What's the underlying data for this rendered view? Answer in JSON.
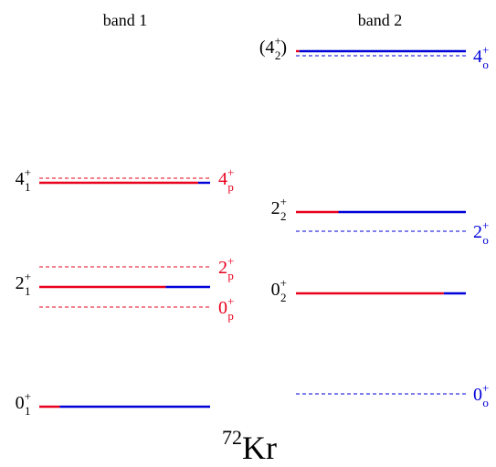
{
  "nucleus": {
    "mass": "72",
    "symbol": "Kr"
  },
  "colors": {
    "red": "#e8001c",
    "blue": "#0000d8",
    "black": "#000000"
  },
  "bands": [
    {
      "id": "band1",
      "title": "band 1"
    },
    {
      "id": "band2",
      "title": "band 2"
    }
  ],
  "levels": {
    "band1": [
      {
        "id": "g1-4",
        "label": {
          "base": "4",
          "sup": "+",
          "sub": "1"
        },
        "red_fraction": 0.93
      },
      {
        "id": "g1-2",
        "label": {
          "base": "2",
          "sup": "+",
          "sub": "1"
        },
        "red_fraction": 0.74
      },
      {
        "id": "g1-0",
        "label": {
          "base": "0",
          "sup": "+",
          "sub": "1"
        },
        "red_fraction": 0.12
      }
    ],
    "band2": [
      {
        "id": "g2-4",
        "label": {
          "pre": "(",
          "base": "4",
          "sup": "+",
          "sub": "2",
          "post": ")"
        },
        "red_fraction": 0.02
      },
      {
        "id": "g2-2",
        "label": {
          "base": "2",
          "sup": "+",
          "sub": "2"
        },
        "red_fraction": 0.25
      },
      {
        "id": "g2-0",
        "label": {
          "base": "0",
          "sup": "+",
          "sub": "2"
        },
        "red_fraction": 0.87
      }
    ]
  },
  "references": {
    "band1": [
      {
        "id": "p4",
        "label": {
          "base": "4",
          "sup": "+",
          "sub": "p"
        },
        "color": "red"
      },
      {
        "id": "p2",
        "label": {
          "base": "2",
          "sup": "+",
          "sub": "p"
        },
        "color": "red"
      },
      {
        "id": "p0",
        "label": {
          "base": "0",
          "sup": "+",
          "sub": "p"
        },
        "color": "red"
      }
    ],
    "band2": [
      {
        "id": "o4",
        "label": {
          "base": "4",
          "sup": "+",
          "sub": "o"
        },
        "color": "blue"
      },
      {
        "id": "o2",
        "label": {
          "base": "2",
          "sup": "+",
          "sub": "o"
        },
        "color": "blue"
      },
      {
        "id": "o0",
        "label": {
          "base": "0",
          "sup": "+",
          "sub": "o"
        },
        "color": "blue"
      }
    ]
  }
}
